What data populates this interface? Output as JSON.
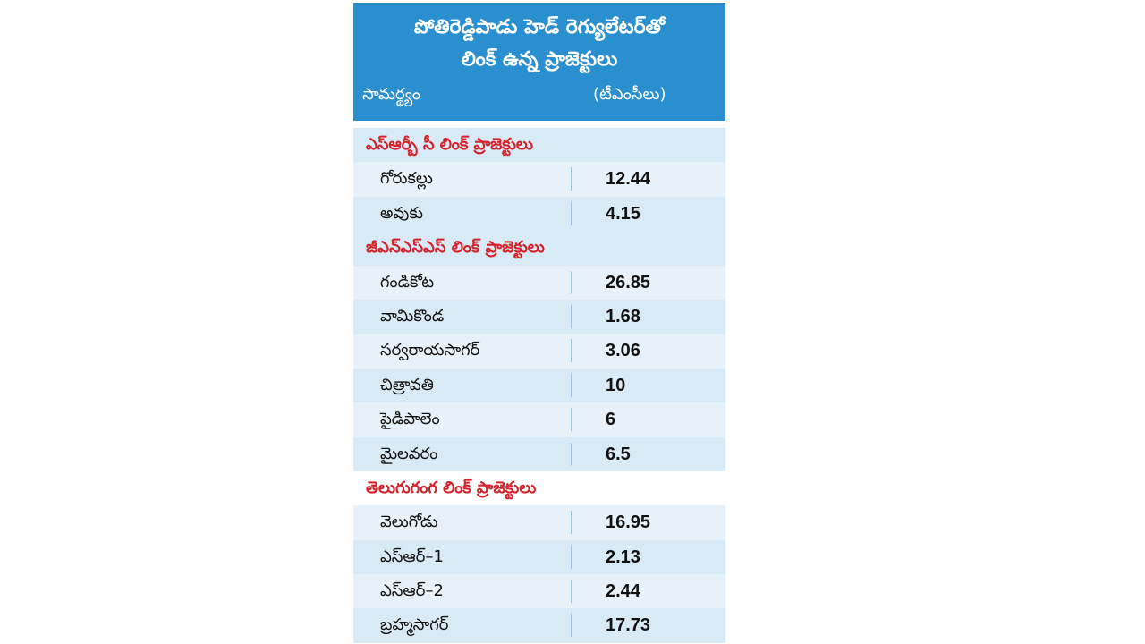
{
  "header": {
    "title_line1": "పోతిరెడ్డిపాడు హెడ్ రెగ్యులేటర్‌తో",
    "title_line2": "లింక్ ఉన్న ప్రాజెక్టులు",
    "col_left": "సామర్థ్యం",
    "col_right": "(టీఎంసీలు)"
  },
  "sections": [
    {
      "label": "ఎస్‌ఆర్బీ సీ లింక్ ప్రాజెక్టులు",
      "rows": [
        {
          "name": "గోరుకల్లు",
          "value": "12.44"
        },
        {
          "name": "అవుకు",
          "value": "4.15"
        }
      ]
    },
    {
      "label": "జీఎన్‌ఎస్‌ఎస్ లింక్ ప్రాజెక్టులు",
      "rows": [
        {
          "name": "గండికోట",
          "value": "26.85"
        },
        {
          "name": "వామికొండ",
          "value": "1.68"
        },
        {
          "name": "సర్వరాయసాగర్",
          "value": "3.06"
        },
        {
          "name": "చిత్రావతి",
          "value": "10"
        },
        {
          "name": "పైడిపాలెం",
          "value": "6"
        },
        {
          "name": "మైలవరం",
          "value": "6.5"
        }
      ]
    },
    {
      "label": "తెలుగుగంగ లింక్ ప్రాజెక్టులు",
      "rows": [
        {
          "name": "వెలుగోడు",
          "value": "16.95"
        },
        {
          "name": "ఎస్‌ఆర్–1",
          "value": "2.13"
        },
        {
          "name": "ఎస్‌ఆర్–2",
          "value": "2.44"
        },
        {
          "name": "బ్రహ్మసాగర్",
          "value": "17.73"
        }
      ]
    }
  ],
  "colors": {
    "header_bg": "#2a8fcf",
    "section_label": "#d2232a",
    "row_bg": "#d9eaf7"
  }
}
